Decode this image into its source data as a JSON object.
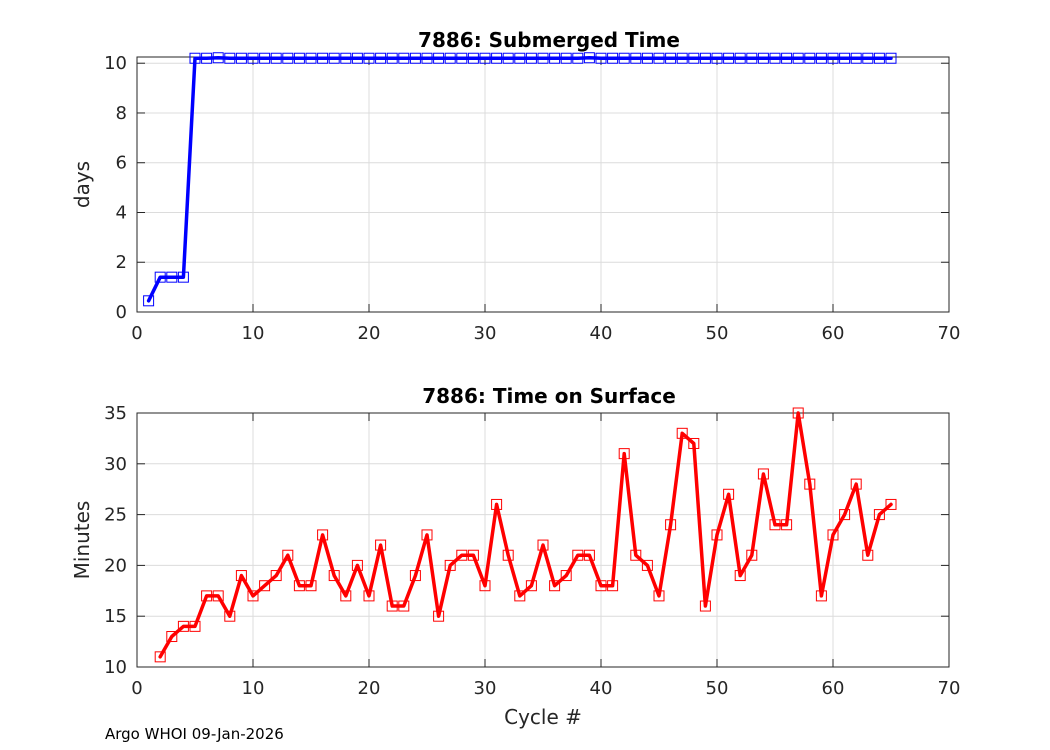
{
  "footer_text": "Argo WHOI 09-Jan-2026",
  "colors": {
    "top_series": "#0000ff",
    "bottom_series": "#ff0000",
    "grid": "#dcdcdc",
    "axis": "#262626"
  },
  "chart_data": [
    {
      "type": "line",
      "title": "7886: Submerged Time",
      "xlabel": "",
      "ylabel": "days",
      "xlim": [
        0,
        70
      ],
      "ylim": [
        0,
        10.25
      ],
      "xticks": [
        0,
        10,
        20,
        30,
        40,
        50,
        60,
        70
      ],
      "yticks": [
        0,
        2,
        4,
        6,
        8,
        10
      ],
      "grid": true,
      "marker": "square",
      "series": [
        {
          "name": "Submerged Time",
          "x": [
            1,
            2,
            3,
            4,
            5,
            6,
            7,
            8,
            9,
            10,
            11,
            12,
            13,
            14,
            15,
            16,
            17,
            18,
            19,
            20,
            21,
            22,
            23,
            24,
            25,
            26,
            27,
            28,
            29,
            30,
            31,
            32,
            33,
            34,
            35,
            36,
            37,
            38,
            39,
            40,
            41,
            42,
            43,
            44,
            45,
            46,
            47,
            48,
            49,
            50,
            51,
            52,
            53,
            54,
            55,
            56,
            57,
            58,
            59,
            60,
            61,
            62,
            63,
            64,
            65
          ],
          "y": [
            0.45,
            1.4,
            1.4,
            1.4,
            10.2,
            10.2,
            10.22,
            10.2,
            10.2,
            10.2,
            10.2,
            10.2,
            10.2,
            10.2,
            10.2,
            10.2,
            10.2,
            10.2,
            10.2,
            10.2,
            10.2,
            10.2,
            10.2,
            10.2,
            10.2,
            10.2,
            10.2,
            10.2,
            10.2,
            10.2,
            10.2,
            10.2,
            10.2,
            10.2,
            10.2,
            10.2,
            10.2,
            10.2,
            10.22,
            10.2,
            10.2,
            10.2,
            10.2,
            10.2,
            10.2,
            10.2,
            10.2,
            10.2,
            10.2,
            10.2,
            10.2,
            10.2,
            10.2,
            10.2,
            10.2,
            10.2,
            10.2,
            10.2,
            10.2,
            10.2,
            10.2,
            10.2,
            10.2,
            10.2,
            10.2
          ]
        }
      ]
    },
    {
      "type": "line",
      "title": "7886: Time on Surface",
      "xlabel": "Cycle #",
      "ylabel": "Minutes",
      "xlim": [
        0,
        70
      ],
      "ylim": [
        10,
        35
      ],
      "xticks": [
        0,
        10,
        20,
        30,
        40,
        50,
        60,
        70
      ],
      "yticks": [
        10,
        15,
        20,
        25,
        30,
        35
      ],
      "grid": true,
      "marker": "square",
      "series": [
        {
          "name": "Time on Surface",
          "x": [
            2,
            3,
            4,
            5,
            6,
            7,
            8,
            9,
            10,
            11,
            12,
            13,
            14,
            15,
            16,
            17,
            18,
            19,
            20,
            21,
            22,
            23,
            24,
            25,
            26,
            27,
            28,
            29,
            30,
            31,
            32,
            33,
            34,
            35,
            36,
            37,
            38,
            39,
            40,
            41,
            42,
            43,
            44,
            45,
            46,
            47,
            48,
            49,
            50,
            51,
            52,
            53,
            54,
            55,
            56,
            57,
            58,
            59,
            60,
            61,
            62,
            63,
            64,
            65
          ],
          "y": [
            11,
            13,
            14,
            14,
            17,
            17,
            15,
            19,
            17,
            18,
            19,
            21,
            18,
            18,
            23,
            19,
            17,
            20,
            17,
            22,
            16,
            16,
            19,
            23,
            15,
            20,
            21,
            21,
            18,
            26,
            21,
            17,
            18,
            22,
            18,
            19,
            21,
            21,
            18,
            18,
            31,
            21,
            20,
            17,
            24,
            33,
            32,
            16,
            23,
            27,
            19,
            21,
            29,
            24,
            24,
            35,
            28,
            17,
            23,
            25,
            28,
            21,
            25,
            26
          ]
        }
      ]
    }
  ]
}
